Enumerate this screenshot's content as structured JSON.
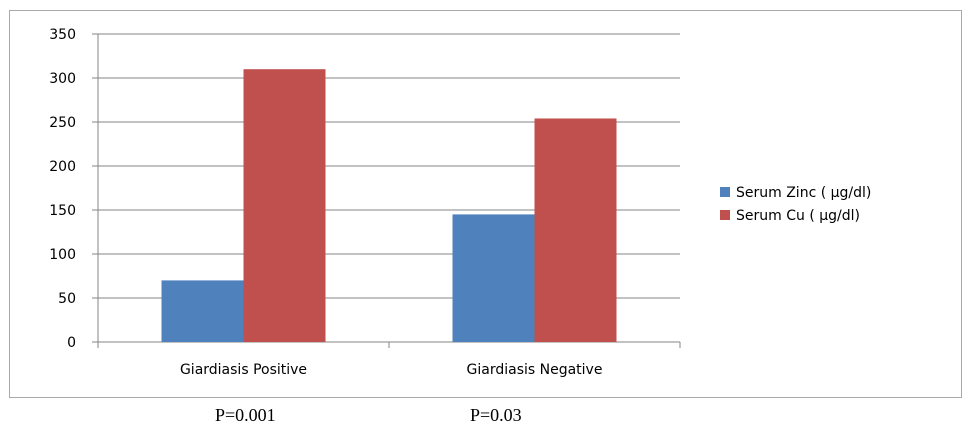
{
  "chart_data": {
    "type": "bar",
    "categories": [
      "Giardiasis Positive",
      "Giardiasis Negative"
    ],
    "series": [
      {
        "name": "Serum Zinc ( µg/dl)",
        "values": [
          70,
          145
        ],
        "color": "#4f81bd"
      },
      {
        "name": "Serum Cu ( µg/dl)",
        "values": [
          310,
          254
        ],
        "color": "#c0504d"
      }
    ],
    "title": "",
    "xlabel": "",
    "ylabel": "",
    "ylim": [
      0,
      350
    ],
    "yticks": [
      0,
      50,
      100,
      150,
      200,
      250,
      300,
      350
    ],
    "grid": true,
    "legend_position": "right"
  },
  "annotations": {
    "p_values": [
      "P=0.001",
      "P=0.03"
    ]
  }
}
